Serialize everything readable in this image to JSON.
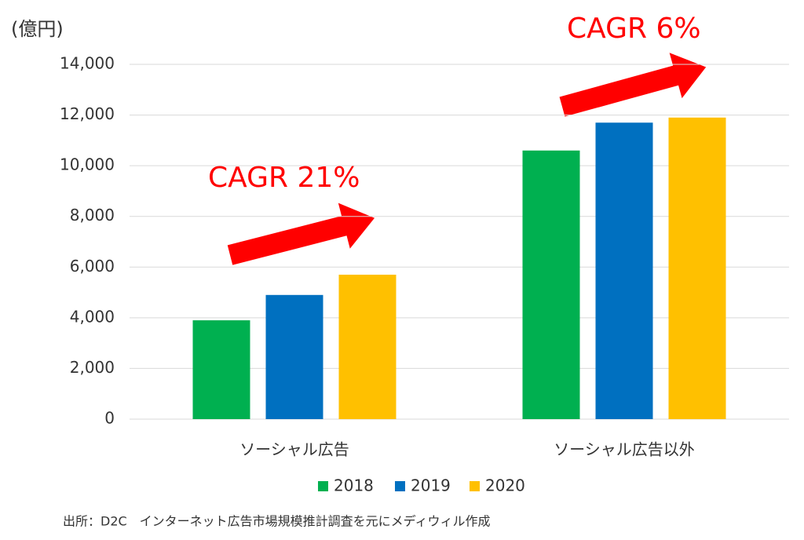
{
  "chart_data": {
    "type": "bar",
    "y_label": "(億円)",
    "categories": [
      "ソーシャル広告",
      "ソーシャル広告以外"
    ],
    "series": [
      {
        "name": "2018",
        "color": "#00b050",
        "values": [
          3900,
          10600
        ]
      },
      {
        "name": "2019",
        "color": "#0070c0",
        "values": [
          4900,
          11700
        ]
      },
      {
        "name": "2020",
        "color": "#ffc000",
        "values": [
          5700,
          11900
        ]
      }
    ],
    "ylim": [
      0,
      14000
    ],
    "yticks": [
      0,
      {
        "value": 2000,
        "label": "2,000"
      },
      {
        "value": 4000,
        "label": "4,000"
      },
      {
        "value": 6000,
        "label": "6,000"
      },
      {
        "value": 8000,
        "label": "8,000"
      },
      {
        "value": 10000,
        "label": "10,000"
      },
      {
        "value": 12000,
        "label": "12,000"
      },
      {
        "value": 14000,
        "label": "14,000"
      }
    ],
    "grid": true,
    "annotations": [
      "CAGR 21%",
      "CAGR 6%"
    ],
    "source": "出所：D2C　インターネット広告市場規模推計調査を元にメディウィル作成"
  }
}
